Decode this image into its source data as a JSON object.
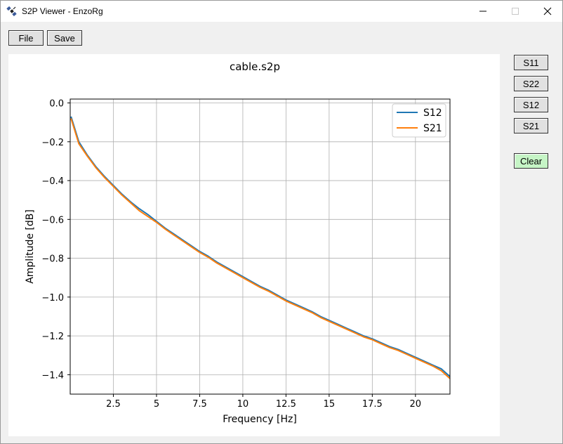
{
  "window": {
    "title": "S2P Viewer - EnzoRg",
    "app_icon": "satellite-icon",
    "controls": {
      "minimize": "minimize-icon",
      "maximize": "maximize-icon",
      "close": "close-icon"
    }
  },
  "toolbar": {
    "file_label": "File",
    "save_label": "Save"
  },
  "side_buttons": {
    "s11": "S11",
    "s22": "S22",
    "s12": "S12",
    "s21": "S21",
    "clear": "Clear",
    "clear_color": "#c6f5c6"
  },
  "chart_data": {
    "type": "line",
    "title": "cable.s2p",
    "xlabel": "Frequency [Hz]",
    "ylabel": "Amplitude [dB]",
    "xlim": [
      0,
      22
    ],
    "ylim": [
      -1.5,
      0.02
    ],
    "xticks": [
      2.5,
      5,
      7.5,
      10,
      12.5,
      15,
      17.5,
      20
    ],
    "xtick_labels": [
      "2.5",
      "5",
      "7.5",
      "10",
      "12.5",
      "15",
      "17.5",
      "20"
    ],
    "yticks": [
      0.0,
      -0.2,
      -0.4,
      -0.6,
      -0.8,
      -1.0,
      -1.2,
      -1.4
    ],
    "ytick_labels": [
      "0.0",
      "−0.2",
      "−0.4",
      "−0.6",
      "−0.8",
      "−1.0",
      "−1.2",
      "−1.4"
    ],
    "grid": true,
    "legend_position": "top-right",
    "series": [
      {
        "name": "S12",
        "color": "#1f77b4",
        "x": [
          0.05,
          0.5,
          1,
          1.5,
          2,
          2.5,
          3,
          3.5,
          4,
          4.5,
          5,
          5.5,
          6,
          6.5,
          7,
          7.5,
          8,
          8.5,
          9,
          9.5,
          10,
          10.5,
          11,
          11.5,
          12,
          12.5,
          13,
          13.5,
          14,
          14.5,
          15,
          15.5,
          16,
          16.5,
          17,
          17.5,
          18,
          18.5,
          19,
          19.5,
          20,
          20.5,
          21,
          21.5,
          22
        ],
        "y": [
          -0.07,
          -0.2,
          -0.27,
          -0.33,
          -0.38,
          -0.425,
          -0.47,
          -0.51,
          -0.545,
          -0.575,
          -0.61,
          -0.645,
          -0.675,
          -0.705,
          -0.735,
          -0.765,
          -0.79,
          -0.82,
          -0.845,
          -0.87,
          -0.895,
          -0.92,
          -0.945,
          -0.965,
          -0.99,
          -1.015,
          -1.035,
          -1.055,
          -1.075,
          -1.1,
          -1.12,
          -1.14,
          -1.16,
          -1.18,
          -1.2,
          -1.215,
          -1.235,
          -1.255,
          -1.27,
          -1.29,
          -1.31,
          -1.33,
          -1.35,
          -1.37,
          -1.41
        ]
      },
      {
        "name": "S21",
        "color": "#ff7f0e",
        "x": [
          0.05,
          0.5,
          1,
          1.5,
          2,
          2.5,
          3,
          3.5,
          4,
          4.5,
          5,
          5.5,
          6,
          6.5,
          7,
          7.5,
          8,
          8.5,
          9,
          9.5,
          10,
          10.5,
          11,
          11.5,
          12,
          12.5,
          13,
          13.5,
          14,
          14.5,
          15,
          15.5,
          16,
          16.5,
          17,
          17.5,
          18,
          18.5,
          19,
          19.5,
          20,
          20.5,
          21,
          21.5,
          22
        ],
        "y": [
          -0.08,
          -0.21,
          -0.275,
          -0.335,
          -0.385,
          -0.43,
          -0.475,
          -0.515,
          -0.555,
          -0.585,
          -0.615,
          -0.65,
          -0.68,
          -0.71,
          -0.74,
          -0.77,
          -0.795,
          -0.825,
          -0.85,
          -0.875,
          -0.9,
          -0.925,
          -0.95,
          -0.97,
          -0.995,
          -1.02,
          -1.04,
          -1.06,
          -1.08,
          -1.105,
          -1.125,
          -1.145,
          -1.165,
          -1.185,
          -1.205,
          -1.22,
          -1.24,
          -1.26,
          -1.275,
          -1.295,
          -1.315,
          -1.335,
          -1.355,
          -1.38,
          -1.42
        ]
      }
    ]
  }
}
